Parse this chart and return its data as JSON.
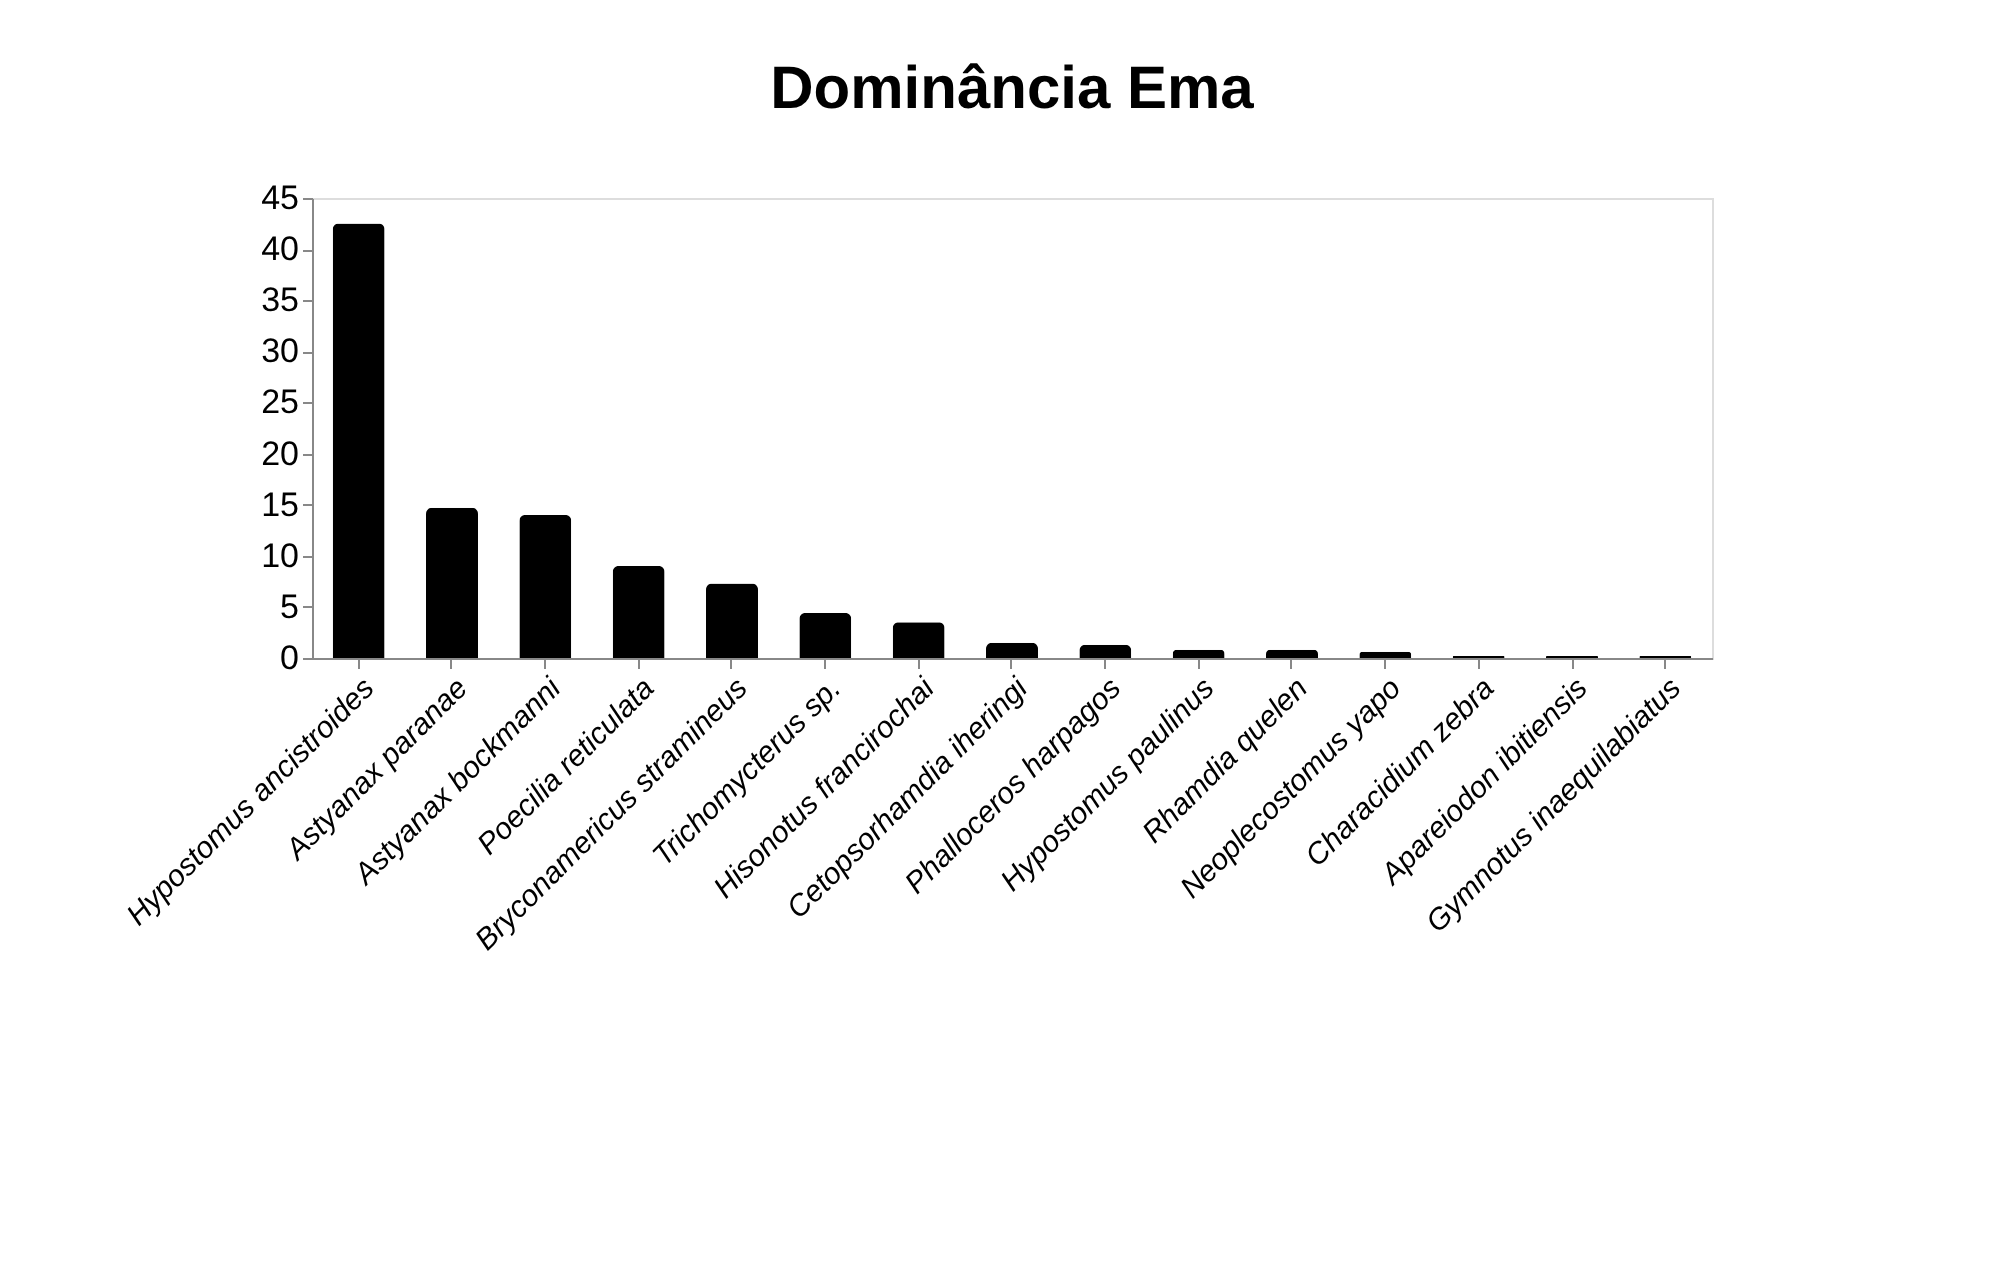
{
  "chart_data": {
    "type": "bar",
    "title": "Dominância Ema",
    "categories": [
      "Hypostomus ancistroides",
      "Astyanax paranae",
      "Astyanax bockmanni",
      "Poecilia reticulata",
      "Bryconamericus stramineus",
      "Trichomycterus sp.",
      "Hisonotus francirochai",
      "Cetopsorhamdia iheringi",
      "Phalloceros harpagos",
      "Hypostomus paulinus",
      "Rhamdia quelen",
      "Neoplecostomus yapo",
      "Characidium zebra",
      "Apareiodon ibitiensis",
      "Gymnotus inaequilabiatus"
    ],
    "values": [
      42.5,
      14.7,
      14,
      9,
      7.3,
      4.4,
      3.5,
      1.5,
      1.3,
      0.8,
      0.8,
      0.6,
      0.2,
      0.2,
      0.2
    ],
    "color": "#000000",
    "ylim": [
      0,
      45
    ],
    "yticks": [
      0,
      5,
      10,
      15,
      20,
      25,
      30,
      35,
      40,
      45
    ],
    "grid": false
  }
}
